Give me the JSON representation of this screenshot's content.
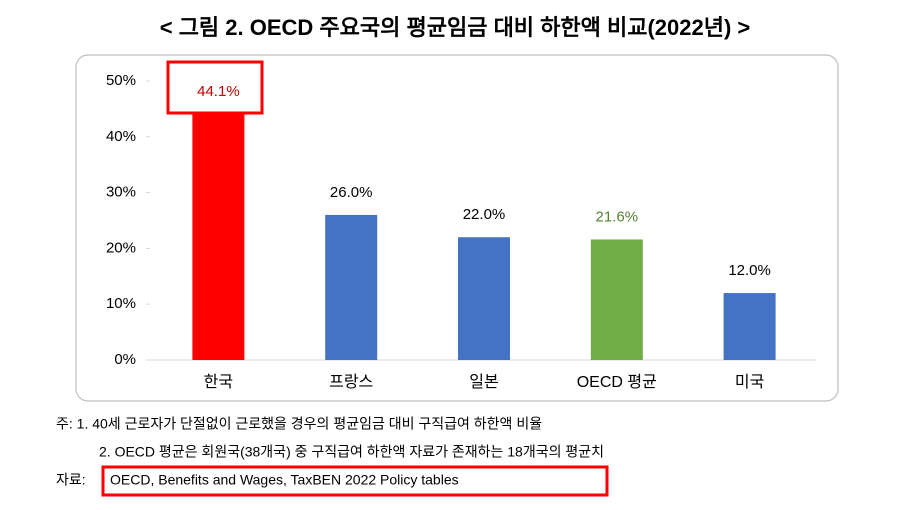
{
  "chart_data": {
    "type": "bar",
    "title": "< 그림 2. OECD 주요국의 평균임금 대비 하한액 비교(2022년) >",
    "categories": [
      "한국",
      "프랑스",
      "일본",
      "OECD 평균",
      "미국"
    ],
    "values": [
      44.1,
      26.0,
      22.0,
      21.6,
      12.0
    ],
    "value_labels": [
      "44.1%",
      "26.0%",
      "22.0%",
      "21.6%",
      "12.0%"
    ],
    "colors": [
      "#ff0000",
      "#4472c4",
      "#4472c4",
      "#70ad47",
      "#4472c4"
    ],
    "value_label_colors": [
      "#c00000",
      "#000000",
      "#000000",
      "#548235",
      "#000000"
    ],
    "ylim": [
      0,
      50
    ],
    "yticks": [
      {
        "value": 0,
        "label": "0%"
      },
      {
        "value": 10,
        "label": "10%"
      },
      {
        "value": 20,
        "label": "20%"
      },
      {
        "value": 30,
        "label": "30%"
      },
      {
        "value": 40,
        "label": "40%"
      },
      {
        "value": 50,
        "label": "50%"
      }
    ],
    "notes": [
      "주: 1. 40세 근로자가 단절없이 근로했을 경우의 평균임금 대비 구직급여 하한액 비율",
      "2. OECD 평균은 회원국(38개국) 중 구직급여 하한액 자료가 존재하는 18개국의 평균치"
    ],
    "source_label": "자료:",
    "source": "OECD, Benefits and Wages, TaxBEN 2022 Policy tables"
  }
}
